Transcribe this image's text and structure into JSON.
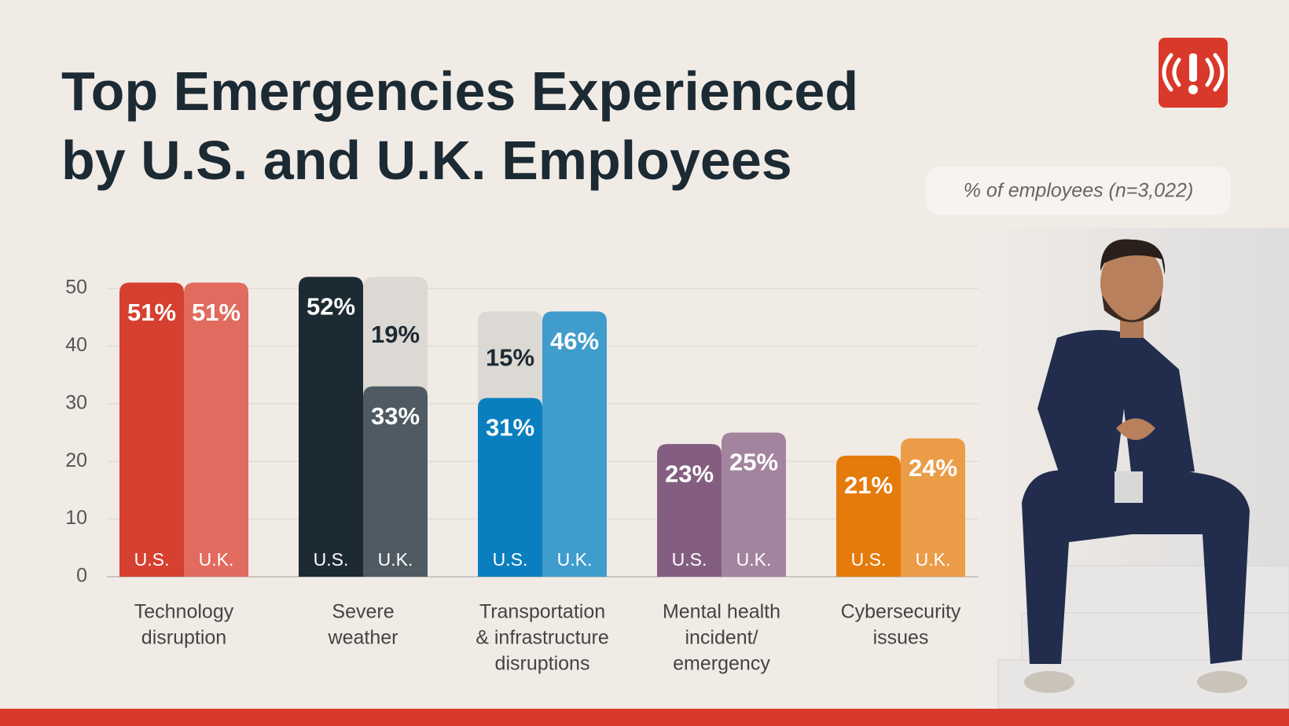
{
  "chart_data": {
    "type": "bar",
    "title": [
      "Top Emergencies Experienced",
      "by U.S. and U.K. Employees"
    ],
    "subtitle": "% of employees (n=3,022)",
    "categories": [
      [
        "Technology",
        "disruption"
      ],
      [
        "Severe",
        "weather"
      ],
      [
        "Transportation",
        "& infrastructure",
        "disruptions"
      ],
      [
        "Mental health",
        "incident/",
        "emergency"
      ],
      [
        "Cybersecurity",
        "issues"
      ]
    ],
    "bars": [
      [
        {
          "label": "U.S.",
          "value": 51,
          "value_label": "51%",
          "color": "#d64030"
        },
        {
          "label": "U.K.",
          "value": 51,
          "value_label": "51%",
          "color": "#e06b5e"
        }
      ],
      [
        {
          "label": "U.S.",
          "value": 52,
          "value_label": "52%",
          "color": "#1c2a33"
        },
        {
          "label": "U.K.",
          "value": 33,
          "value_label": "33%",
          "color": "#4f5a62",
          "extra": 19,
          "extra_label": "19%",
          "extra_color": "#dcd8d3"
        }
      ],
      [
        {
          "label": "U.S.",
          "value": 31,
          "value_label": "31%",
          "color": "#0a7fbf",
          "extra": 15,
          "extra_label": "15%",
          "extra_color": "#dcd8d3"
        },
        {
          "label": "U.K.",
          "value": 46,
          "value_label": "46%",
          "color": "#409ccc"
        }
      ],
      [
        {
          "label": "U.S.",
          "value": 23,
          "value_label": "23%",
          "color": "#845e80"
        },
        {
          "label": "U.K.",
          "value": 25,
          "value_label": "25%",
          "color": "#a3849e"
        }
      ],
      [
        {
          "label": "U.S.",
          "value": 21,
          "value_label": "21%",
          "color": "#e47b0b"
        },
        {
          "label": "U.K.",
          "value": 24,
          "value_label": "24%",
          "color": "#eb9c47"
        }
      ]
    ],
    "ylim": [
      0,
      50
    ],
    "yticks": [
      0,
      10,
      20,
      30,
      40,
      50
    ],
    "grid": true
  }
}
